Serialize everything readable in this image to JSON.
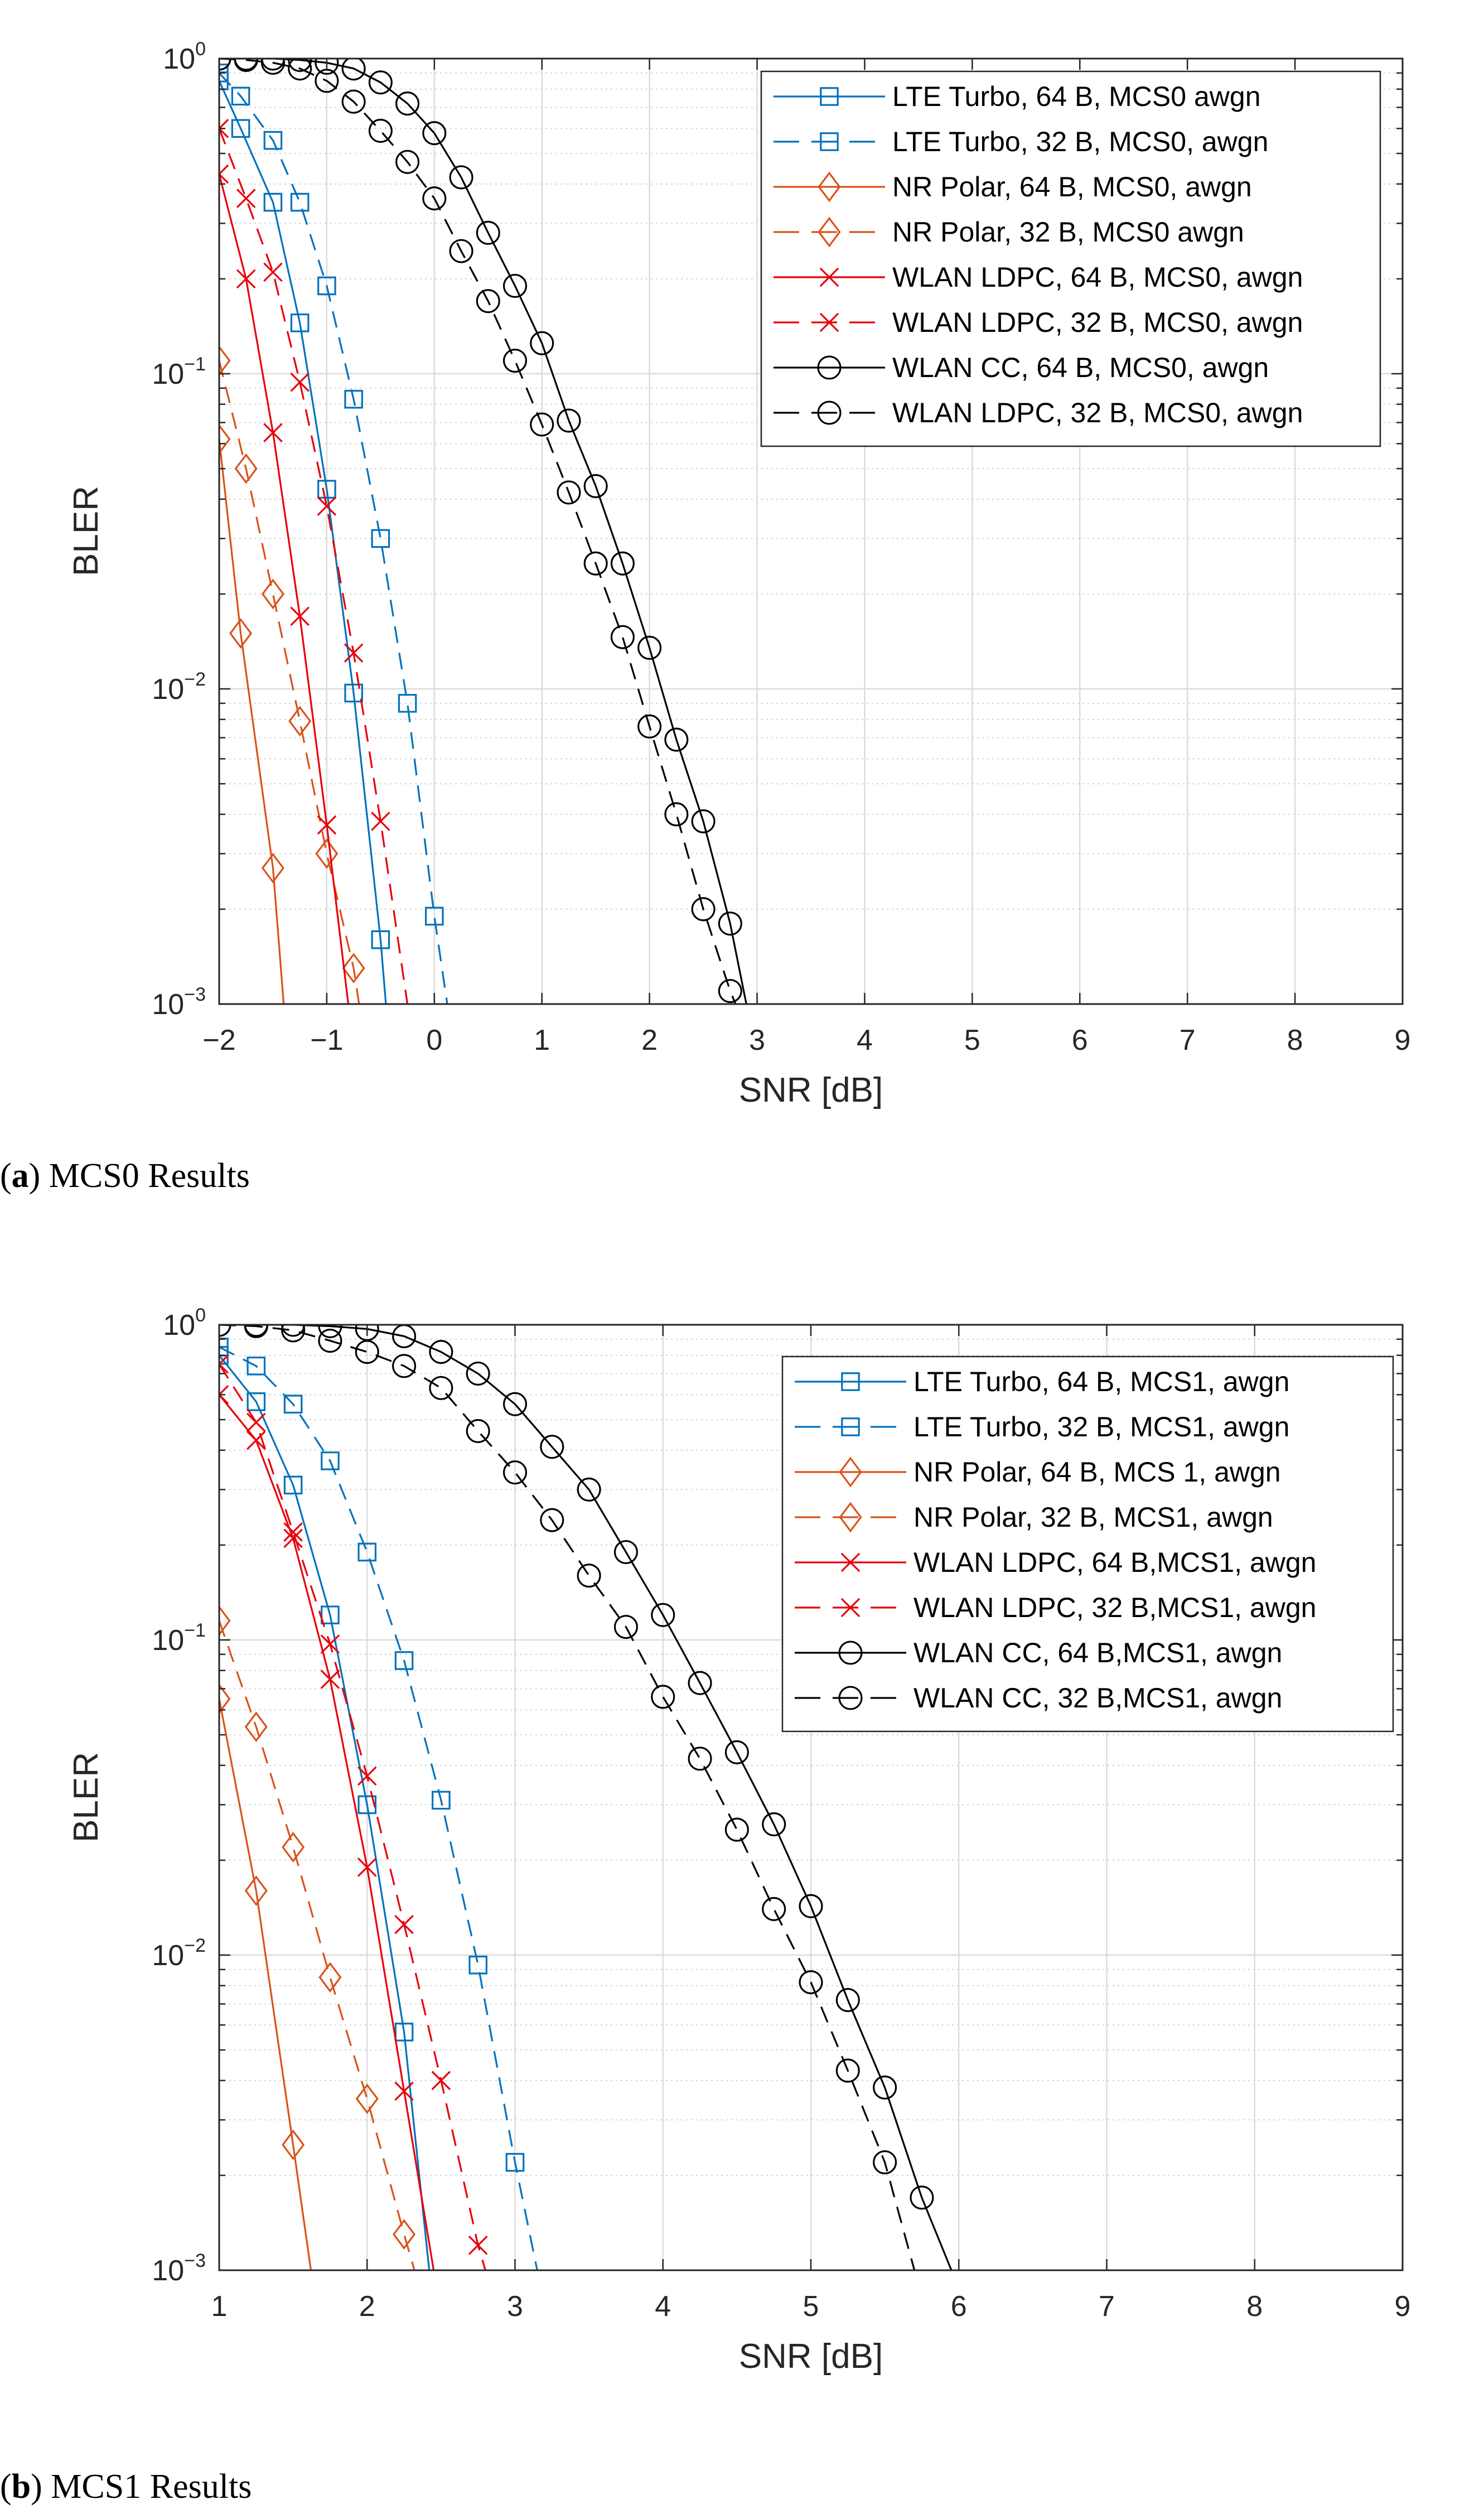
{
  "chart_data": [
    {
      "type": "line",
      "title": "",
      "caption": {
        "letter": "a",
        "text": ") MCS0 Results"
      },
      "xlabel": "SNR [dB]",
      "ylabel": "BLER",
      "xlim": [
        -2,
        9
      ],
      "ylim": [
        0.001,
        1
      ],
      "yscale": "log",
      "grid": true,
      "legend_position": "top-right",
      "xticks": [
        -2,
        -1,
        0,
        1,
        2,
        3,
        4,
        5,
        6,
        7,
        8,
        9
      ],
      "xtick_labels": [
        "−2",
        "−1",
        "0",
        "1",
        "2",
        "3",
        "4",
        "5",
        "6",
        "7",
        "8",
        "9"
      ],
      "yticks": [
        {
          "value": 1,
          "base": "10",
          "exp": "0"
        },
        {
          "value": 0.1,
          "base": "10",
          "exp": "−1"
        },
        {
          "value": 0.01,
          "base": "10",
          "exp": "−2"
        },
        {
          "value": 0.001,
          "base": "10",
          "exp": "−3"
        }
      ],
      "series": [
        {
          "name": "LTE Turbo, 64 B, MCS0 awgn",
          "color": "#0072BD",
          "dash": "solid",
          "marker": "square",
          "x": [
            -2,
            -1.8,
            -1.5,
            -1.25,
            -1,
            -0.75,
            -0.5,
            -0.45
          ],
          "y": [
            0.85,
            0.6,
            0.35,
            0.145,
            0.043,
            0.0097,
            0.0016,
            0.001
          ]
        },
        {
          "name": "LTE Turbo, 32 B, MCS0, awgn",
          "color": "#0072BD",
          "dash": "dashed",
          "marker": "square",
          "x": [
            -2,
            -1.8,
            -1.5,
            -1.25,
            -1,
            -0.75,
            -0.5,
            -0.25,
            0,
            0.12
          ],
          "y": [
            0.9,
            0.76,
            0.55,
            0.35,
            0.19,
            0.083,
            0.03,
            0.009,
            0.0019,
            0.001
          ]
        },
        {
          "name": "NR Polar, 64 B, MCS0, awgn",
          "color": "#D95319",
          "dash": "solid",
          "marker": "diamond",
          "x": [
            -2,
            -1.8,
            -1.5,
            -1.4
          ],
          "y": [
            0.062,
            0.015,
            0.0027,
            0.001
          ]
        },
        {
          "name": "NR Polar, 32 B, MCS0 awgn",
          "color": "#D95319",
          "dash": "dashed",
          "marker": "diamond",
          "x": [
            -2,
            -1.75,
            -1.5,
            -1.25,
            -1,
            -0.75,
            -0.7
          ],
          "y": [
            0.11,
            0.05,
            0.02,
            0.0079,
            0.003,
            0.0013,
            0.001
          ]
        },
        {
          "name": "WLAN LDPC, 64 B, MCS0, awgn",
          "color": "#E8000B",
          "dash": "solid",
          "marker": "x",
          "x": [
            -2,
            -1.75,
            -1.5,
            -1.25,
            -1,
            -0.8
          ],
          "y": [
            0.43,
            0.2,
            0.065,
            0.017,
            0.0037,
            0.001
          ]
        },
        {
          "name": "WLAN LDPC, 32 B, MCS0, awgn",
          "color": "#E8000B",
          "dash": "dashed",
          "marker": "x",
          "x": [
            -2,
            -1.75,
            -1.5,
            -1.25,
            -1,
            -0.75,
            -0.5,
            -0.25
          ],
          "y": [
            0.6,
            0.36,
            0.21,
            0.094,
            0.038,
            0.013,
            0.0038,
            0.001
          ]
        },
        {
          "name": "WLAN CC, 64 B, MCS0, awgn",
          "color": "#000000",
          "dash": "solid",
          "marker": "circle",
          "x": [
            -2,
            -1.75,
            -1.5,
            -1.25,
            -1,
            -0.75,
            -0.5,
            -0.25,
            0,
            0.25,
            0.5,
            0.75,
            1,
            1.25,
            1.5,
            1.75,
            2,
            2.25,
            2.5,
            2.75,
            2.9
          ],
          "y": [
            1.0,
            1.0,
            1.0,
            0.99,
            0.97,
            0.93,
            0.84,
            0.72,
            0.58,
            0.42,
            0.28,
            0.19,
            0.125,
            0.071,
            0.044,
            0.025,
            0.0135,
            0.0069,
            0.0038,
            0.0018,
            0.001
          ]
        },
        {
          "name": "WLAN LDPC, 32 B, MCS0, awgn",
          "color": "#000000",
          "dash": "dashed",
          "marker": "circle",
          "x": [
            -2,
            -1.75,
            -1.5,
            -1.25,
            -1,
            -0.75,
            -0.5,
            -0.25,
            0,
            0.25,
            0.5,
            0.75,
            1,
            1.25,
            1.5,
            1.75,
            2,
            2.25,
            2.5,
            2.75,
            2.8
          ],
          "y": [
            1.0,
            0.99,
            0.97,
            0.93,
            0.85,
            0.73,
            0.59,
            0.47,
            0.36,
            0.245,
            0.17,
            0.11,
            0.069,
            0.042,
            0.025,
            0.0146,
            0.0076,
            0.004,
            0.002,
            0.0011,
            0.001
          ]
        }
      ]
    },
    {
      "type": "line",
      "title": "",
      "caption": {
        "letter": "b",
        "text": ") MCS1 Results"
      },
      "xlabel": "SNR [dB]",
      "ylabel": "BLER",
      "xlim": [
        1,
        9
      ],
      "ylim": [
        0.001,
        1
      ],
      "yscale": "log",
      "grid": true,
      "legend_position": "top-right",
      "xticks": [
        1,
        2,
        3,
        4,
        5,
        6,
        7,
        8,
        9
      ],
      "xtick_labels": [
        "1",
        "2",
        "3",
        "4",
        "5",
        "6",
        "7",
        "8",
        "9"
      ],
      "yticks": [
        {
          "value": 1,
          "base": "10",
          "exp": "0"
        },
        {
          "value": 0.1,
          "base": "10",
          "exp": "−1"
        },
        {
          "value": 0.01,
          "base": "10",
          "exp": "−2"
        },
        {
          "value": 0.001,
          "base": "10",
          "exp": "−3"
        }
      ],
      "series": [
        {
          "name": "LTE Turbo, 64 B, MCS1, awgn",
          "color": "#0072BD",
          "dash": "solid",
          "marker": "square",
          "x": [
            1,
            1.25,
            1.5,
            1.75,
            2,
            2.25,
            2.42
          ],
          "y": [
            0.8,
            0.57,
            0.31,
            0.12,
            0.03,
            0.0057,
            0.001
          ]
        },
        {
          "name": "LTE Turbo, 32 B, MCS1, awgn",
          "color": "#0072BD",
          "dash": "dashed",
          "marker": "square",
          "x": [
            1,
            1.25,
            1.5,
            1.75,
            2,
            2.25,
            2.5,
            2.75,
            3,
            3.15
          ],
          "y": [
            0.85,
            0.74,
            0.56,
            0.37,
            0.19,
            0.086,
            0.031,
            0.0093,
            0.0022,
            0.001
          ]
        },
        {
          "name": "NR Polar, 64 B, MCS 1, awgn",
          "color": "#D95319",
          "dash": "solid",
          "marker": "diamond",
          "x": [
            1,
            1.25,
            1.5,
            1.62
          ],
          "y": [
            0.065,
            0.016,
            0.0025,
            0.001
          ]
        },
        {
          "name": "NR Polar, 32 B, MCS1, awgn",
          "color": "#D95319",
          "dash": "dashed",
          "marker": "diamond",
          "x": [
            1,
            1.25,
            1.5,
            1.75,
            2,
            2.25,
            2.32
          ],
          "y": [
            0.115,
            0.053,
            0.022,
            0.0085,
            0.0035,
            0.0013,
            0.001
          ]
        },
        {
          "name": "WLAN LDPC, 64 B,MCS1, awgn",
          "color": "#E8000B",
          "dash": "solid",
          "marker": "x",
          "x": [
            1,
            1.25,
            1.5,
            1.75,
            2,
            2.25,
            2.45
          ],
          "y": [
            0.6,
            0.43,
            0.21,
            0.075,
            0.019,
            0.0037,
            0.001
          ]
        },
        {
          "name": "WLAN LDPC, 32 B,MCS1, awgn",
          "color": "#E8000B",
          "dash": "dashed",
          "marker": "x",
          "x": [
            1,
            1.25,
            1.5,
            1.75,
            2,
            2.25,
            2.5,
            2.75,
            2.8
          ],
          "y": [
            0.75,
            0.49,
            0.22,
            0.097,
            0.037,
            0.0125,
            0.004,
            0.0012,
            0.001
          ]
        },
        {
          "name": "WLAN CC, 64 B,MCS1, awgn",
          "color": "#000000",
          "dash": "solid",
          "marker": "circle",
          "x": [
            1,
            1.25,
            1.5,
            1.75,
            2,
            2.25,
            2.5,
            2.75,
            3,
            3.25,
            3.5,
            3.75,
            4,
            4.25,
            4.5,
            4.75,
            5,
            5.25,
            5.5,
            5.75,
            5.95
          ],
          "y": [
            1.0,
            1.0,
            1.0,
            0.99,
            0.97,
            0.92,
            0.82,
            0.7,
            0.56,
            0.41,
            0.3,
            0.19,
            0.12,
            0.073,
            0.044,
            0.026,
            0.0143,
            0.0072,
            0.0038,
            0.0017,
            0.001
          ]
        },
        {
          "name": "WLAN CC, 32 B,MCS1, awgn",
          "color": "#000000",
          "dash": "dashed",
          "marker": "circle",
          "x": [
            1,
            1.25,
            1.5,
            1.75,
            2,
            2.25,
            2.5,
            2.75,
            3,
            3.25,
            3.5,
            3.75,
            4,
            4.25,
            4.5,
            4.75,
            5,
            5.25,
            5.5,
            5.7
          ],
          "y": [
            1.0,
            0.99,
            0.96,
            0.89,
            0.82,
            0.74,
            0.63,
            0.46,
            0.34,
            0.24,
            0.16,
            0.11,
            0.066,
            0.042,
            0.025,
            0.014,
            0.0082,
            0.0043,
            0.0022,
            0.001
          ]
        }
      ]
    }
  ]
}
